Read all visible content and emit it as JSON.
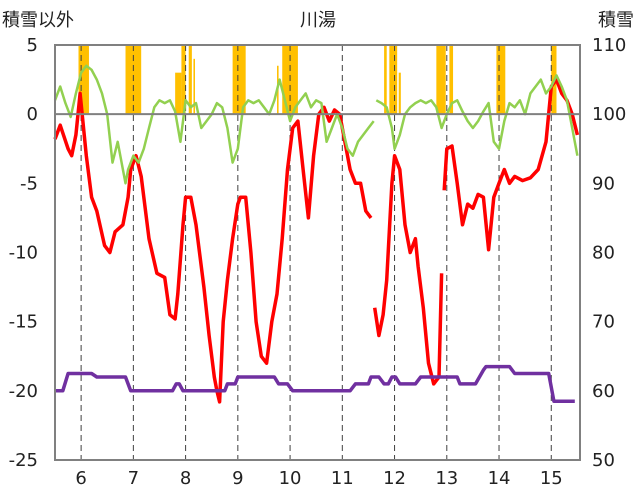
{
  "chart_data": {
    "type": "line",
    "title": "川湯",
    "left_axis_label": "積雪以外",
    "right_axis_label": "積雪",
    "y_left": {
      "min": -25,
      "max": 5,
      "ticks": [
        5,
        0,
        -5,
        -10,
        -15,
        -20,
        -25
      ]
    },
    "y_right": {
      "min": 50,
      "max": 110,
      "ticks": [
        110,
        100,
        90,
        80,
        70,
        60,
        50
      ]
    },
    "x": {
      "min": 5.5,
      "max": 15.55,
      "ticks": [
        6,
        7,
        8,
        9,
        10,
        11,
        12,
        13,
        14,
        15
      ]
    },
    "grid": {
      "vertical_dashed": true
    },
    "colors": {
      "temperature": "#ff0000",
      "humidity": "#92d050",
      "snow_depth": "#7030a0",
      "sunshine": "#ffc000",
      "frame": "#808080"
    },
    "series": [
      {
        "key": "temperature",
        "axis": "left",
        "x": [
          5.5,
          5.6,
          5.75,
          5.82,
          5.9,
          5.98,
          6.1,
          6.2,
          6.3,
          6.45,
          6.55,
          6.65,
          6.8,
          6.9,
          6.95,
          7.05,
          7.15,
          7.3,
          7.45,
          7.6,
          7.7,
          7.8,
          7.85,
          7.95,
          8.0,
          8.1,
          8.2,
          8.35,
          8.45,
          8.55,
          8.6,
          8.65,
          8.72,
          8.8,
          8.9,
          9.0,
          9.05,
          9.15,
          9.25,
          9.35,
          9.45,
          9.55,
          9.65,
          9.75,
          9.85,
          9.95,
          10.05,
          10.15,
          10.25,
          10.35,
          10.45,
          10.55,
          10.65,
          10.75,
          10.85,
          10.95,
          11.05,
          11.15,
          11.25,
          11.35,
          11.45,
          11.55
        ],
        "values": [
          -1.8,
          -0.8,
          -2.5,
          -3.0,
          -1.5,
          1.5,
          -3.0,
          -6.0,
          -7.0,
          -9.5,
          -10.0,
          -8.5,
          -8.0,
          -6.0,
          -4.0,
          -3.0,
          -4.5,
          -9.0,
          -11.5,
          -11.8,
          -14.5,
          -14.8,
          -13.0,
          -8.0,
          -6.0,
          -6.0,
          -8.0,
          -12.5,
          -16.0,
          -19.0,
          -20.0,
          -20.8,
          -15.0,
          -12.0,
          -9.0,
          -6.5,
          -6.0,
          -6.0,
          -10.0,
          -15.0,
          -17.5,
          -18.0,
          -15.0,
          -13.0,
          -9.0,
          -4.0,
          -1.0,
          -0.5,
          -4.0,
          -7.5,
          -3.0,
          0.0,
          0.5,
          -0.5,
          0.3,
          0.0,
          -2.0,
          -4.0,
          -5.0,
          -5.0,
          -7.0,
          -7.5
        ]
      },
      {
        "key": "temperature_b",
        "axis": "left",
        "x": [
          11.62,
          11.7,
          11.78,
          11.85,
          11.95,
          12.0,
          12.1,
          12.2,
          12.3,
          12.4,
          12.45,
          12.55,
          12.65,
          12.75,
          12.85,
          12.9
        ],
        "values": [
          -14.0,
          -16.0,
          -14.5,
          -12.0,
          -5.0,
          -3.0,
          -4.0,
          -8.0,
          -10.0,
          -9.0,
          -11.0,
          -14.0,
          -18.0,
          -19.5,
          -19.0,
          -11.5
        ]
      },
      {
        "key": "temperature_c",
        "axis": "left",
        "x": [
          12.95,
          13.0,
          13.1,
          13.2,
          13.3,
          13.4,
          13.5,
          13.6,
          13.7,
          13.8,
          13.9,
          14.0,
          14.1,
          14.2,
          14.3,
          14.45,
          14.6,
          14.75,
          14.9,
          15.0,
          15.1,
          15.2,
          15.3,
          15.4,
          15.5
        ],
        "values": [
          -5.5,
          -2.5,
          -2.3,
          -5.0,
          -8.0,
          -6.5,
          -6.8,
          -5.8,
          -6.0,
          -9.8,
          -6.0,
          -5.0,
          -4.0,
          -5.0,
          -4.5,
          -4.8,
          -4.6,
          -4.0,
          -2.0,
          2.0,
          2.5,
          1.5,
          1.0,
          0.0,
          -1.5
        ]
      },
      {
        "key": "humidity",
        "axis": "left",
        "x": [
          5.5,
          5.6,
          5.7,
          5.8,
          5.9,
          6.0,
          6.1,
          6.2,
          6.3,
          6.4,
          6.5,
          6.6,
          6.7,
          6.8,
          6.85,
          6.9,
          7.0,
          7.1,
          7.2,
          7.3,
          7.4,
          7.5,
          7.6,
          7.7,
          7.8,
          7.9,
          8.0,
          8.1,
          8.2,
          8.3,
          8.4,
          8.5,
          8.6,
          8.7,
          8.8,
          8.9,
          9.0,
          9.1,
          9.2,
          9.3,
          9.4,
          9.5,
          9.6,
          9.7,
          9.8,
          9.9,
          10.0,
          10.1,
          10.2,
          10.3,
          10.4,
          10.5,
          10.6,
          10.7,
          10.8,
          10.9,
          11.0,
          11.1,
          11.2,
          11.3,
          11.4,
          11.5,
          11.6
        ],
        "values": [
          1.0,
          2.0,
          0.8,
          -0.2,
          1.5,
          3.0,
          3.5,
          3.2,
          2.5,
          1.5,
          0.0,
          -3.5,
          -2.0,
          -4.0,
          -5.0,
          -4.0,
          -3.0,
          -3.5,
          -2.5,
          -1.0,
          0.5,
          1.0,
          0.8,
          1.0,
          0.2,
          -2.0,
          1.0,
          0.5,
          0.8,
          -1.0,
          -0.5,
          0.0,
          0.8,
          0.5,
          -1.0,
          -3.5,
          -2.5,
          0.5,
          1.0,
          0.8,
          1.0,
          0.5,
          0.0,
          1.0,
          2.5,
          1.0,
          -0.5,
          0.5,
          1.0,
          1.5,
          0.5,
          1.0,
          0.8,
          -2.0,
          -1.0,
          0.0,
          -1.0,
          -2.5,
          -3.0,
          -2.0,
          -1.5,
          -1.0,
          -0.5
        ]
      },
      {
        "key": "humidity_b",
        "axis": "left",
        "x": [
          11.65,
          11.75,
          11.85,
          11.95,
          12.0,
          12.1,
          12.2,
          12.3,
          12.4,
          12.5,
          12.6,
          12.7,
          12.8,
          12.9,
          13.0,
          13.1,
          13.2,
          13.3,
          13.4,
          13.5,
          13.6,
          13.7,
          13.8,
          13.9,
          14.0,
          14.1,
          14.2,
          14.3,
          14.4,
          14.5,
          14.6,
          14.7,
          14.8,
          14.9,
          15.0,
          15.1,
          15.2,
          15.3,
          15.4,
          15.5
        ],
        "values": [
          1.0,
          0.8,
          0.5,
          -1.0,
          -2.5,
          -1.5,
          0.0,
          0.5,
          0.8,
          1.0,
          0.8,
          1.0,
          0.5,
          -1.0,
          0.0,
          0.8,
          1.0,
          0.2,
          -0.5,
          -1.0,
          -0.5,
          0.2,
          0.8,
          -2.0,
          -2.5,
          -0.5,
          0.8,
          0.5,
          1.0,
          0.0,
          1.5,
          2.0,
          2.5,
          1.5,
          2.0,
          2.8,
          2.0,
          1.0,
          -1.0,
          -3.0
        ]
      },
      {
        "key": "snow_depth",
        "axis": "right",
        "x": [
          5.5,
          5.65,
          5.75,
          6.2,
          6.3,
          6.85,
          6.95,
          7.75,
          7.82,
          7.88,
          7.95,
          8.45,
          8.55,
          8.75,
          8.8,
          8.95,
          9.0,
          9.7,
          9.78,
          9.95,
          10.05,
          11.15,
          11.25,
          11.5,
          11.55,
          11.62,
          11.7,
          11.8,
          11.88,
          11.95,
          12.02,
          12.1,
          12.15,
          12.4,
          12.5,
          12.9,
          13.0,
          13.2,
          13.25,
          13.5,
          13.55,
          13.7,
          13.75,
          14.2,
          14.3,
          14.95,
          15.05,
          15.45
        ],
        "values": [
          60,
          60,
          62.5,
          62.5,
          62,
          62,
          60,
          60,
          61,
          61,
          60,
          60,
          60,
          60,
          61,
          61,
          62,
          62,
          61,
          61,
          60,
          60,
          61,
          61,
          62,
          62,
          62,
          61,
          61,
          62,
          62,
          61,
          61,
          61,
          62,
          62,
          62,
          62,
          61,
          61,
          61,
          63,
          63.5,
          63.5,
          62.5,
          62.5,
          58.5,
          58.5
        ]
      },
      {
        "key": "sunshine",
        "axis": "left",
        "bars": [
          {
            "from": 5.95,
            "to": 6.15,
            "top": 5.0
          },
          {
            "from": 6.85,
            "to": 7.15,
            "top": 5.0
          },
          {
            "from": 7.8,
            "to": 7.92,
            "top": 3.0
          },
          {
            "from": 7.92,
            "to": 8.0,
            "top": 5.0
          },
          {
            "from": 8.06,
            "to": 8.12,
            "top": 5.0
          },
          {
            "from": 8.15,
            "to": 8.18,
            "top": 4.0
          },
          {
            "from": 8.9,
            "to": 9.15,
            "top": 5.0
          },
          {
            "from": 9.75,
            "to": 9.78,
            "top": 3.5
          },
          {
            "from": 9.85,
            "to": 10.15,
            "top": 5.0
          },
          {
            "from": 11.8,
            "to": 11.85,
            "top": 5.0
          },
          {
            "from": 11.9,
            "to": 12.05,
            "top": 5.0
          },
          {
            "from": 12.08,
            "to": 12.12,
            "top": 3.0
          },
          {
            "from": 12.8,
            "to": 12.98,
            "top": 5.0
          },
          {
            "from": 13.05,
            "to": 13.12,
            "top": 5.0
          },
          {
            "from": 13.95,
            "to": 14.12,
            "top": 5.0
          },
          {
            "from": 15.0,
            "to": 15.1,
            "top": 5.0
          }
        ]
      }
    ]
  }
}
